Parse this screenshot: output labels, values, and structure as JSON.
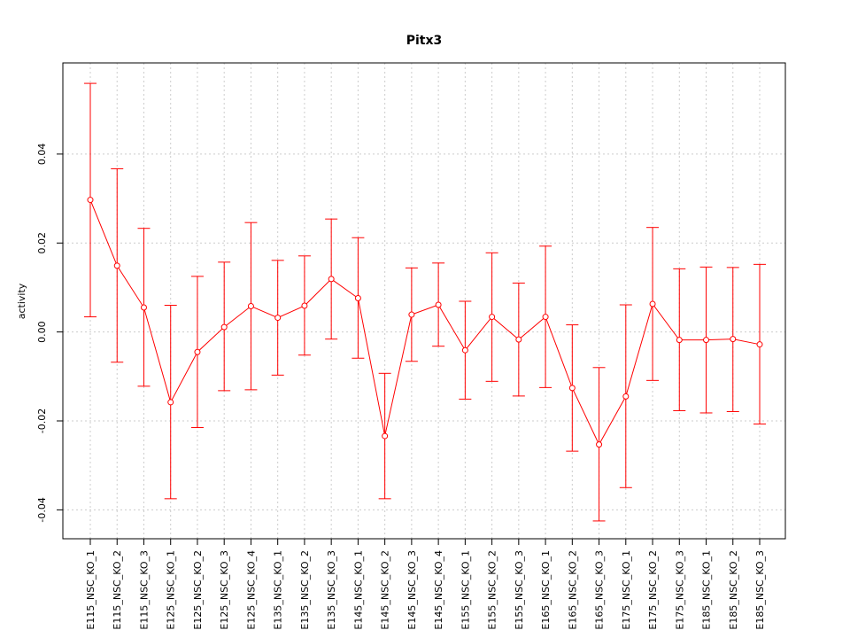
{
  "chart_data": {
    "type": "line",
    "title": "Pitx3",
    "xlabel": "",
    "ylabel": "activity",
    "categories": [
      "E115_NSC_KO_1",
      "E115_NSC_KO_2",
      "E115_NSC_KO_3",
      "E125_NSC_KO_1",
      "E125_NSC_KO_2",
      "E125_NSC_KO_3",
      "E125_NSC_KO_4",
      "E135_NSC_KO_1",
      "E135_NSC_KO_2",
      "E135_NSC_KO_3",
      "E145_NSC_KO_1",
      "E145_NSC_KO_2",
      "E145_NSC_KO_3",
      "E145_NSC_KO_4",
      "E155_NSC_KO_1",
      "E155_NSC_KO_2",
      "E155_NSC_KO_3",
      "E165_NSC_KO_1",
      "E165_NSC_KO_2",
      "E165_NSC_KO_3",
      "E175_NSC_KO_1",
      "E175_NSC_KO_2",
      "E175_NSC_KO_3",
      "E185_NSC_KO_1",
      "E185_NSC_KO_2",
      "E185_NSC_KO_3"
    ],
    "series": [
      {
        "values": [
          0.0297,
          0.0149,
          0.0055,
          -0.0158,
          -0.0045,
          0.0011,
          0.0058,
          0.0032,
          0.0059,
          0.0119,
          0.0076,
          -0.0234,
          0.0039,
          0.0061,
          -0.0041,
          0.0034,
          -0.0017,
          0.0034,
          -0.0126,
          -0.0253,
          -0.0145,
          0.0063,
          -0.0018,
          -0.0018,
          -0.0016,
          -0.0028
        ],
        "lower": [
          0.0034,
          -0.0068,
          -0.0122,
          -0.0375,
          -0.0215,
          -0.0132,
          -0.013,
          -0.0097,
          -0.0052,
          -0.0016,
          -0.0059,
          -0.0375,
          -0.0066,
          -0.0032,
          -0.0151,
          -0.0111,
          -0.0144,
          -0.0125,
          -0.0268,
          -0.0425,
          -0.035,
          -0.0109,
          -0.0177,
          -0.0182,
          -0.0179,
          -0.0207
        ],
        "upper": [
          0.0559,
          0.0367,
          0.0233,
          0.006,
          0.0125,
          0.0157,
          0.0246,
          0.0161,
          0.0171,
          0.0254,
          0.0212,
          -0.0093,
          0.0144,
          0.0155,
          0.0069,
          0.0178,
          0.011,
          0.0193,
          0.0016,
          -0.008,
          0.0061,
          0.0235,
          0.0142,
          0.0146,
          0.0145,
          0.0152
        ]
      }
    ],
    "yticks": [
      -0.04,
      -0.02,
      0.0,
      0.02,
      0.04
    ],
    "ytick_labels": [
      "-0.04",
      "-0.02",
      "0.00",
      "0.02",
      "0.04"
    ],
    "ylim": [
      -0.0465,
      0.0605
    ],
    "grid": true,
    "legend": "none",
    "colors": {
      "series": "#ff0000",
      "grid": "#cccccc",
      "frame": "#000000"
    }
  }
}
